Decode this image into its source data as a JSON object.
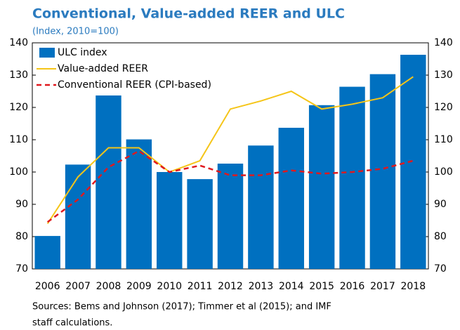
{
  "chart_data": {
    "type": "combo",
    "title": "Conventional, Value-added REER and ULC",
    "subtitle": "(Index, 2010=100)",
    "note": [
      "Sources: Bems and Johnson (2017); Timmer et al (2015); and IMF",
      "staff calculations."
    ],
    "categories": [
      "2006",
      "2007",
      "2008",
      "2009",
      "2010",
      "2011",
      "2012",
      "2013",
      "2014",
      "2015",
      "2016",
      "2017",
      "2018"
    ],
    "series": [
      {
        "name": "ULC index",
        "type": "bar",
        "color": "#0070c0",
        "values": [
          80.2,
          102.3,
          123.7,
          110.1,
          100,
          97.8,
          102.6,
          108.2,
          113.7,
          120.7,
          126.4,
          130.3,
          136.3
        ]
      },
      {
        "name": "Value-added REER",
        "type": "line",
        "color": "#f5c518",
        "dash": false,
        "values": [
          84,
          98.5,
          107.5,
          107.5,
          100,
          103.5,
          119.5,
          122,
          125,
          119.5,
          121,
          123,
          129.5
        ]
      },
      {
        "name": "Conventional REER (CPI-based)",
        "type": "line",
        "color": "#e0191e",
        "dash": true,
        "values": [
          84.5,
          91.5,
          101.5,
          106.5,
          100,
          102,
          99,
          99,
          100.5,
          99.5,
          100,
          101,
          103.5
        ]
      }
    ],
    "ylim": [
      70,
      140
    ],
    "yticks": [
      70,
      80,
      90,
      100,
      110,
      120,
      130,
      140
    ],
    "y2lim": [
      70,
      140
    ],
    "y2ticks": [
      70,
      80,
      90,
      100,
      110,
      120,
      130,
      140
    ],
    "legend": "top-left",
    "grid": false
  }
}
